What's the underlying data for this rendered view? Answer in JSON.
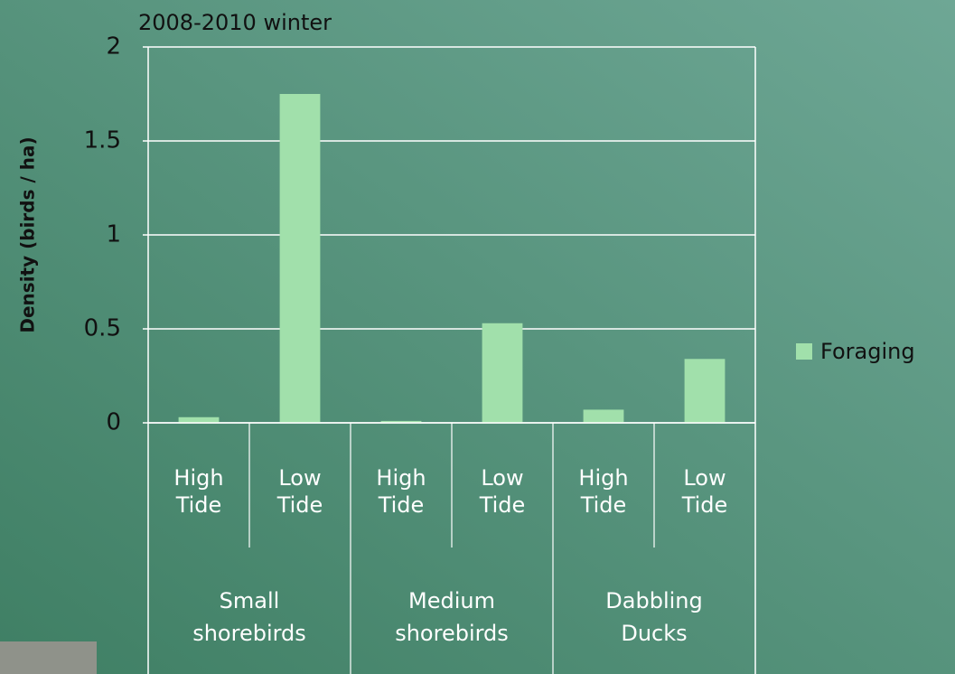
{
  "chart_data": {
    "type": "bar",
    "title": "2008-2010 winter",
    "y_label": "Density (birds / ha)",
    "categories": [
      "High Tide",
      "Low Tide",
      "High Tide",
      "Low Tide",
      "High Tide",
      "Low Tide"
    ],
    "groups": [
      "Small shorebirds",
      "Medium shorebirds",
      "Dabbling Ducks"
    ],
    "series": [
      {
        "name": "Foraging",
        "color": "#a1e0ab",
        "values": [
          0.03,
          1.75,
          0.01,
          0.53,
          0.07,
          0.34
        ]
      }
    ],
    "ylim": [
      0,
      2
    ],
    "yticks": [
      0,
      0.5,
      1,
      1.5,
      2
    ],
    "grid": true,
    "legend": "right"
  }
}
